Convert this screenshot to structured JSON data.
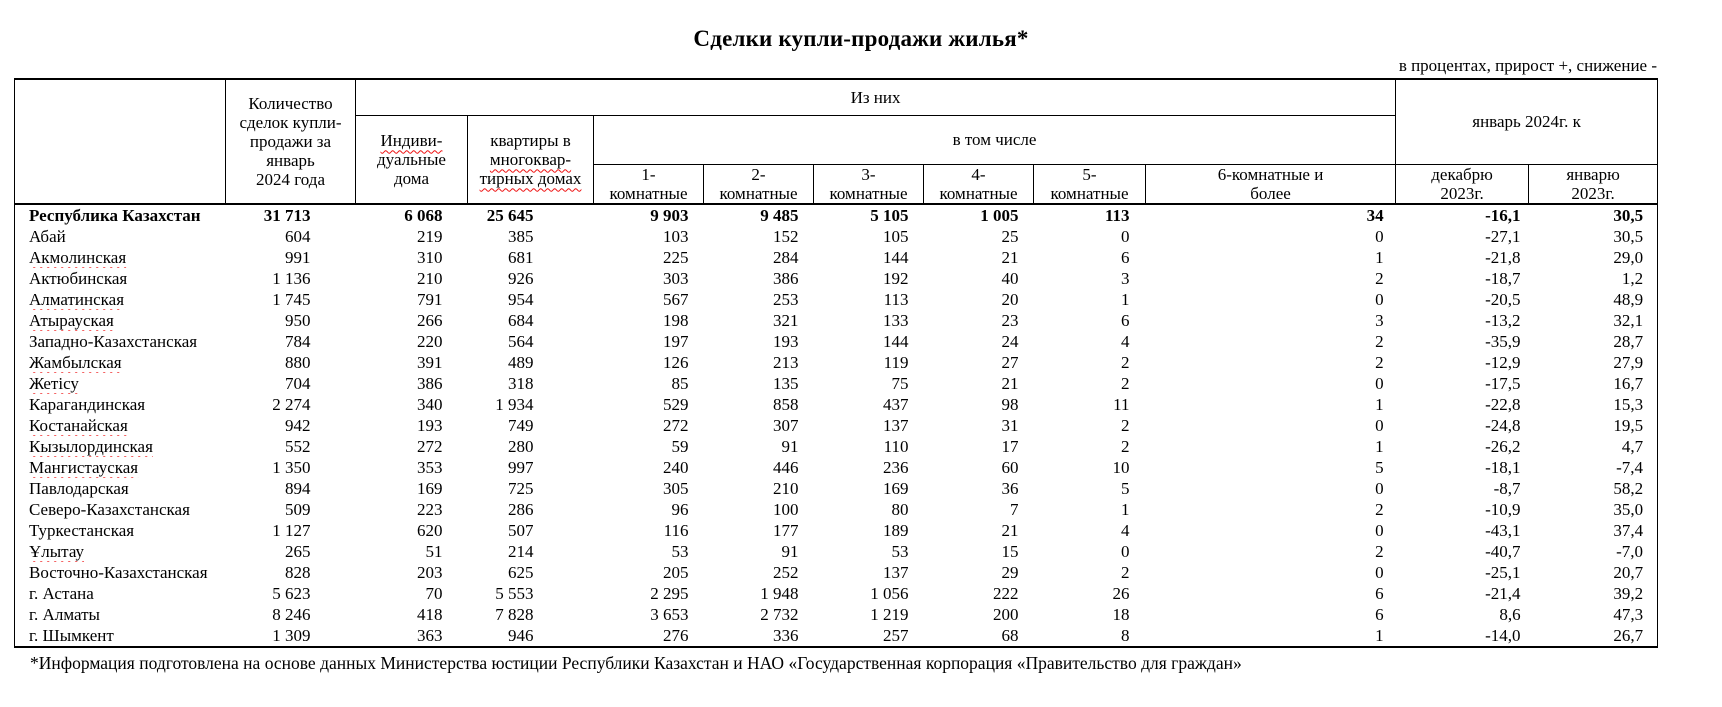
{
  "title": "Сделки купли-продажи жилья*",
  "subtitle": "в процентах, прирост +, снижение -",
  "footnote": "*Информация подготовлена на основе данных Министерства юстиции Республики Казахстан и НАО «Государственная корпорация «Правительство для граждан»",
  "table": {
    "header": {
      "qty_lines": [
        "Количество",
        "сделок купли-",
        "продажи за",
        "январь",
        "2024 года"
      ],
      "group_iz_nih": "Из них",
      "group_v_tom_chisle": "в том числе",
      "group_jan2024": "январь 2024г. к",
      "indiv_line1": "Индиви-",
      "indiv_line2": "дуальные",
      "indiv_line3": "дома",
      "flats_line1": "квартиры в",
      "flats_line2": "многоквар-",
      "flats_line3": "тирных домах",
      "rooms": [
        {
          "line1": "1-",
          "line2": "комнатные"
        },
        {
          "line1": "2-",
          "line2": "комнатные"
        },
        {
          "line1": "3-",
          "line2": "комнатные"
        },
        {
          "line1": "4-",
          "line2": "комнатные"
        },
        {
          "line1": "5-",
          "line2": "комнатные"
        },
        {
          "line1": "6-комнатные и",
          "line2": "более"
        }
      ],
      "dec_line1": "декабрю",
      "dec_line2": "2023г.",
      "jan_line1": "январю",
      "jan_line2": "2023г."
    },
    "rows": [
      {
        "region": "Республика Казахстан",
        "bold": true,
        "wavy": false,
        "values": [
          "31 713",
          "6 068",
          "25 645",
          "9 903",
          "9 485",
          "5 105",
          "1 005",
          "113",
          "34",
          "-16,1",
          "30,5"
        ]
      },
      {
        "region": "Абай",
        "bold": false,
        "wavy": false,
        "values": [
          "604",
          "219",
          "385",
          "103",
          "152",
          "105",
          "25",
          "0",
          "0",
          "-27,1",
          "30,5"
        ]
      },
      {
        "region": "Акмолинская",
        "bold": false,
        "wavy": true,
        "values": [
          "991",
          "310",
          "681",
          "225",
          "284",
          "144",
          "21",
          "6",
          "1",
          "-21,8",
          "29,0"
        ]
      },
      {
        "region": "Актюбинская",
        "bold": false,
        "wavy": false,
        "values": [
          "1 136",
          "210",
          "926",
          "303",
          "386",
          "192",
          "40",
          "3",
          "2",
          "-18,7",
          "1,2"
        ]
      },
      {
        "region": "Алматинская",
        "bold": false,
        "wavy": true,
        "values": [
          "1 745",
          "791",
          "954",
          "567",
          "253",
          "113",
          "20",
          "1",
          "0",
          "-20,5",
          "48,9"
        ]
      },
      {
        "region": "Атырауская",
        "bold": false,
        "wavy": true,
        "values": [
          "950",
          "266",
          "684",
          "198",
          "321",
          "133",
          "23",
          "6",
          "3",
          "-13,2",
          "32,1"
        ]
      },
      {
        "region": "Западно-Казахстанская",
        "bold": false,
        "wavy": false,
        "values": [
          "784",
          "220",
          "564",
          "197",
          "193",
          "144",
          "24",
          "4",
          "2",
          "-35,9",
          "28,7"
        ]
      },
      {
        "region": "Жамбылская",
        "bold": false,
        "wavy": true,
        "values": [
          "880",
          "391",
          "489",
          "126",
          "213",
          "119",
          "27",
          "2",
          "2",
          "-12,9",
          "27,9"
        ]
      },
      {
        "region": "Жетісу",
        "bold": false,
        "wavy": true,
        "values": [
          "704",
          "386",
          "318",
          "85",
          "135",
          "75",
          "21",
          "2",
          "0",
          "-17,5",
          "16,7"
        ]
      },
      {
        "region": "Карагандинская",
        "bold": false,
        "wavy": false,
        "values": [
          "2 274",
          "340",
          "1 934",
          "529",
          "858",
          "437",
          "98",
          "11",
          "1",
          "-22,8",
          "15,3"
        ]
      },
      {
        "region": "Костанайская",
        "bold": false,
        "wavy": true,
        "values": [
          "942",
          "193",
          "749",
          "272",
          "307",
          "137",
          "31",
          "2",
          "0",
          "-24,8",
          "19,5"
        ]
      },
      {
        "region": "Кызылординская",
        "bold": false,
        "wavy": true,
        "values": [
          "552",
          "272",
          "280",
          "59",
          "91",
          "110",
          "17",
          "2",
          "1",
          "-26,2",
          "4,7"
        ]
      },
      {
        "region": "Мангистауская",
        "bold": false,
        "wavy": true,
        "values": [
          "1 350",
          "353",
          "997",
          "240",
          "446",
          "236",
          "60",
          "10",
          "5",
          "-18,1",
          "-7,4"
        ]
      },
      {
        "region": "Павлодарская",
        "bold": false,
        "wavy": false,
        "values": [
          "894",
          "169",
          "725",
          "305",
          "210",
          "169",
          "36",
          "5",
          "0",
          "-8,7",
          "58,2"
        ]
      },
      {
        "region": "Северо-Казахстанская",
        "bold": false,
        "wavy": false,
        "values": [
          "509",
          "223",
          "286",
          "96",
          "100",
          "80",
          "7",
          "1",
          "2",
          "-10,9",
          "35,0"
        ]
      },
      {
        "region": "Туркестанская",
        "bold": false,
        "wavy": false,
        "values": [
          "1 127",
          "620",
          "507",
          "116",
          "177",
          "189",
          "21",
          "4",
          "0",
          "-43,1",
          "37,4"
        ]
      },
      {
        "region": "Ұлытау",
        "bold": false,
        "wavy": true,
        "values": [
          "265",
          "51",
          "214",
          "53",
          "91",
          "53",
          "15",
          "0",
          "2",
          "-40,7",
          "-7,0"
        ]
      },
      {
        "region": "Восточно-Казахстанская",
        "bold": false,
        "wavy": false,
        "values": [
          "828",
          "203",
          "625",
          "205",
          "252",
          "137",
          "29",
          "2",
          "0",
          "-25,1",
          "20,7"
        ]
      },
      {
        "region": "г. Астана",
        "bold": false,
        "wavy": false,
        "values": [
          "5 623",
          "70",
          "5 553",
          "2 295",
          "1 948",
          "1 056",
          "222",
          "26",
          "6",
          "-21,4",
          "39,2"
        ]
      },
      {
        "region": "г. Алматы",
        "bold": false,
        "wavy": false,
        "values": [
          "8 246",
          "418",
          "7 828",
          "3 653",
          "2 732",
          "1 219",
          "200",
          "18",
          "6",
          "8,6",
          "47,3"
        ]
      },
      {
        "region": "г. Шымкент",
        "bold": false,
        "wavy": false,
        "values": [
          "1 309",
          "363",
          "946",
          "276",
          "336",
          "257",
          "68",
          "8",
          "1",
          "-14,0",
          "26,7"
        ]
      }
    ]
  }
}
